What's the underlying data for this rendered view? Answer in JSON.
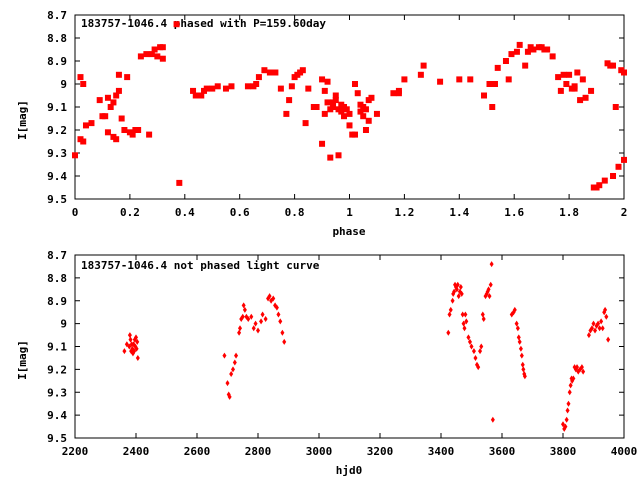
{
  "chart_data": [
    {
      "type": "scatter",
      "title": "183757-1046.4 phased with P=159.60day",
      "xlabel": "phase",
      "ylabel": "I[mag]",
      "xlim": [
        0,
        2
      ],
      "ylim": [
        8.7,
        9.5
      ],
      "y_inverted": true,
      "xticks": [
        "0",
        "0.2",
        "0.4",
        "0.6",
        "0.8",
        "1",
        "1.2",
        "1.4",
        "1.6",
        "1.8",
        "2"
      ],
      "yticks": [
        "8.7",
        "8.8",
        "8.9",
        "9",
        "9.1",
        "9.2",
        "9.3",
        "9.4",
        "9.5"
      ],
      "marker": "filled-square",
      "color": "#ff0000",
      "grid": false,
      "legend": "none",
      "points": [
        [
          0.0,
          9.31
        ],
        [
          0.02,
          9.24
        ],
        [
          0.03,
          9.25
        ],
        [
          0.02,
          8.97
        ],
        [
          0.03,
          9.0
        ],
        [
          0.04,
          9.18
        ],
        [
          0.06,
          9.17
        ],
        [
          0.09,
          9.07
        ],
        [
          0.1,
          9.14
        ],
        [
          0.11,
          9.14
        ],
        [
          0.12,
          9.21
        ],
        [
          0.12,
          9.06
        ],
        [
          0.13,
          9.1
        ],
        [
          0.14,
          9.08
        ],
        [
          0.14,
          9.23
        ],
        [
          0.15,
          9.24
        ],
        [
          0.15,
          9.05
        ],
        [
          0.16,
          9.03
        ],
        [
          0.16,
          8.96
        ],
        [
          0.17,
          9.15
        ],
        [
          0.18,
          9.2
        ],
        [
          0.19,
          8.97
        ],
        [
          0.2,
          9.21
        ],
        [
          0.21,
          9.22
        ],
        [
          0.22,
          9.2
        ],
        [
          0.23,
          9.2
        ],
        [
          0.24,
          8.88
        ],
        [
          0.26,
          8.87
        ],
        [
          0.27,
          9.22
        ],
        [
          0.28,
          8.87
        ],
        [
          0.29,
          8.85
        ],
        [
          0.3,
          8.88
        ],
        [
          0.31,
          8.84
        ],
        [
          0.32,
          8.89
        ],
        [
          0.32,
          8.84
        ],
        [
          0.37,
          8.74
        ],
        [
          0.38,
          9.43
        ],
        [
          0.43,
          9.03
        ],
        [
          0.44,
          9.05
        ],
        [
          0.45,
          9.05
        ],
        [
          0.46,
          9.05
        ],
        [
          0.47,
          9.03
        ],
        [
          0.48,
          9.02
        ],
        [
          0.5,
          9.02
        ],
        [
          0.52,
          9.01
        ],
        [
          0.55,
          9.02
        ],
        [
          0.57,
          9.01
        ],
        [
          0.63,
          9.01
        ],
        [
          0.65,
          9.01
        ],
        [
          0.66,
          9.0
        ],
        [
          0.67,
          8.97
        ],
        [
          0.69,
          8.94
        ],
        [
          0.71,
          8.95
        ],
        [
          0.73,
          8.95
        ],
        [
          0.75,
          9.02
        ],
        [
          0.77,
          9.13
        ],
        [
          0.78,
          9.07
        ],
        [
          0.79,
          9.01
        ],
        [
          0.8,
          8.97
        ],
        [
          0.81,
          8.96
        ],
        [
          0.82,
          8.95
        ],
        [
          0.83,
          8.94
        ],
        [
          0.84,
          9.17
        ],
        [
          0.85,
          9.02
        ],
        [
          0.87,
          9.1
        ],
        [
          0.88,
          9.1
        ],
        [
          0.9,
          9.26
        ],
        [
          0.9,
          8.98
        ],
        [
          0.91,
          9.03
        ],
        [
          0.91,
          9.13
        ],
        [
          0.92,
          8.99
        ],
        [
          0.92,
          9.08
        ],
        [
          0.93,
          9.11
        ],
        [
          0.93,
          9.32
        ],
        [
          0.94,
          9.08
        ],
        [
          0.94,
          9.1
        ],
        [
          0.95,
          9.05
        ],
        [
          0.95,
          9.07
        ],
        [
          0.96,
          9.11
        ],
        [
          0.96,
          9.31
        ],
        [
          0.97,
          9.09
        ],
        [
          0.97,
          9.12
        ],
        [
          0.98,
          9.1
        ],
        [
          0.98,
          9.14
        ],
        [
          0.99,
          9.11
        ],
        [
          1.0,
          9.13
        ],
        [
          1.0,
          9.18
        ],
        [
          1.01,
          9.22
        ],
        [
          1.02,
          9.0
        ],
        [
          1.02,
          9.22
        ],
        [
          1.03,
          9.04
        ],
        [
          1.04,
          9.09
        ],
        [
          1.04,
          9.12
        ],
        [
          1.05,
          9.1
        ],
        [
          1.05,
          9.14
        ],
        [
          1.06,
          9.11
        ],
        [
          1.06,
          9.2
        ],
        [
          1.07,
          9.16
        ],
        [
          1.07,
          9.07
        ],
        [
          1.08,
          9.06
        ],
        [
          1.1,
          9.13
        ],
        [
          1.16,
          9.04
        ],
        [
          1.18,
          9.03
        ],
        [
          1.18,
          9.04
        ],
        [
          1.2,
          8.98
        ],
        [
          1.26,
          8.96
        ],
        [
          1.27,
          8.92
        ],
        [
          1.33,
          8.99
        ],
        [
          1.4,
          8.98
        ],
        [
          1.44,
          8.98
        ],
        [
          1.49,
          9.05
        ],
        [
          1.51,
          9.0
        ],
        [
          1.52,
          9.1
        ],
        [
          1.53,
          9.0
        ],
        [
          1.54,
          8.93
        ],
        [
          1.57,
          8.9
        ],
        [
          1.58,
          8.98
        ],
        [
          1.59,
          8.87
        ],
        [
          1.61,
          8.86
        ],
        [
          1.62,
          8.83
        ],
        [
          1.64,
          8.92
        ],
        [
          1.65,
          8.86
        ],
        [
          1.66,
          8.84
        ],
        [
          1.67,
          8.85
        ],
        [
          1.69,
          8.84
        ],
        [
          1.7,
          8.84
        ],
        [
          1.71,
          8.85
        ],
        [
          1.72,
          8.85
        ],
        [
          1.74,
          8.88
        ],
        [
          1.76,
          8.97
        ],
        [
          1.77,
          9.03
        ],
        [
          1.78,
          8.96
        ],
        [
          1.79,
          9.0
        ],
        [
          1.8,
          8.96
        ],
        [
          1.81,
          9.02
        ],
        [
          1.82,
          9.02
        ],
        [
          1.82,
          9.01
        ],
        [
          1.83,
          8.95
        ],
        [
          1.84,
          9.07
        ],
        [
          1.85,
          8.98
        ],
        [
          1.86,
          9.06
        ],
        [
          1.88,
          9.03
        ],
        [
          1.89,
          9.45
        ],
        [
          1.9,
          9.45
        ],
        [
          1.91,
          9.44
        ],
        [
          1.93,
          9.42
        ],
        [
          1.94,
          8.91
        ],
        [
          1.95,
          8.92
        ],
        [
          1.96,
          9.4
        ],
        [
          1.96,
          8.92
        ],
        [
          1.97,
          9.1
        ],
        [
          1.98,
          9.36
        ],
        [
          1.99,
          8.94
        ],
        [
          2.0,
          9.33
        ],
        [
          2.0,
          8.95
        ]
      ]
    },
    {
      "type": "scatter",
      "title": "183757-1046.4 not phased light curve",
      "xlabel": "hjd0",
      "ylabel": "I[mag]",
      "xlim": [
        2200,
        4000
      ],
      "ylim": [
        8.7,
        9.5
      ],
      "y_inverted": true,
      "xticks": [
        "2200",
        "2400",
        "2600",
        "2800",
        "3000",
        "3200",
        "3400",
        "3600",
        "3800",
        "4000"
      ],
      "yticks": [
        "8.7",
        "8.8",
        "8.9",
        "9",
        "9.1",
        "9.2",
        "9.3",
        "9.4",
        "9.5"
      ],
      "marker": "small-diamond",
      "color": "#ff0000",
      "grid": false,
      "legend": "none",
      "points": [
        [
          2362,
          9.12
        ],
        [
          2370,
          9.09
        ],
        [
          2378,
          9.1
        ],
        [
          2380,
          9.05
        ],
        [
          2382,
          9.07
        ],
        [
          2384,
          9.12
        ],
        [
          2386,
          9.09
        ],
        [
          2388,
          9.11
        ],
        [
          2390,
          9.13
        ],
        [
          2392,
          9.09
        ],
        [
          2394,
          9.12
        ],
        [
          2396,
          9.07
        ],
        [
          2398,
          9.1
        ],
        [
          2400,
          9.06
        ],
        [
          2402,
          9.11
        ],
        [
          2404,
          9.08
        ],
        [
          2406,
          9.15
        ],
        [
          2690,
          9.14
        ],
        [
          2700,
          9.26
        ],
        [
          2704,
          9.31
        ],
        [
          2707,
          9.32
        ],
        [
          2712,
          9.22
        ],
        [
          2718,
          9.2
        ],
        [
          2724,
          9.17
        ],
        [
          2728,
          9.14
        ],
        [
          2738,
          9.04
        ],
        [
          2741,
          9.02
        ],
        [
          2745,
          8.98
        ],
        [
          2750,
          8.97
        ],
        [
          2753,
          8.92
        ],
        [
          2757,
          8.94
        ],
        [
          2762,
          8.97
        ],
        [
          2768,
          8.98
        ],
        [
          2778,
          8.97
        ],
        [
          2786,
          9.02
        ],
        [
          2792,
          9.0
        ],
        [
          2800,
          9.03
        ],
        [
          2810,
          8.99
        ],
        [
          2815,
          8.96
        ],
        [
          2825,
          8.98
        ],
        [
          2833,
          8.89
        ],
        [
          2838,
          8.88
        ],
        [
          2843,
          8.9
        ],
        [
          2850,
          8.89
        ],
        [
          2856,
          8.92
        ],
        [
          2862,
          8.93
        ],
        [
          2867,
          8.96
        ],
        [
          2873,
          8.99
        ],
        [
          2880,
          9.04
        ],
        [
          2886,
          9.08
        ],
        [
          3424,
          9.04
        ],
        [
          3428,
          8.96
        ],
        [
          3432,
          8.94
        ],
        [
          3438,
          8.9
        ],
        [
          3440,
          8.87
        ],
        [
          3443,
          8.86
        ],
        [
          3446,
          8.83
        ],
        [
          3449,
          8.84
        ],
        [
          3452,
          8.85
        ],
        [
          3455,
          8.83
        ],
        [
          3458,
          8.88
        ],
        [
          3462,
          8.86
        ],
        [
          3465,
          8.84
        ],
        [
          3468,
          8.87
        ],
        [
          3471,
          8.96
        ],
        [
          3474,
          9.0
        ],
        [
          3477,
          9.02
        ],
        [
          3480,
          8.96
        ],
        [
          3483,
          8.99
        ],
        [
          3490,
          9.06
        ],
        [
          3495,
          9.08
        ],
        [
          3500,
          9.1
        ],
        [
          3508,
          9.12
        ],
        [
          3513,
          9.15
        ],
        [
          3518,
          9.18
        ],
        [
          3522,
          9.19
        ],
        [
          3528,
          9.12
        ],
        [
          3532,
          9.1
        ],
        [
          3537,
          8.96
        ],
        [
          3540,
          8.98
        ],
        [
          3546,
          8.88
        ],
        [
          3550,
          8.87
        ],
        [
          3553,
          8.86
        ],
        [
          3556,
          8.85
        ],
        [
          3559,
          8.88
        ],
        [
          3563,
          8.83
        ],
        [
          3566,
          8.74
        ],
        [
          3570,
          9.42
        ],
        [
          3632,
          8.96
        ],
        [
          3638,
          8.95
        ],
        [
          3642,
          8.94
        ],
        [
          3648,
          9.0
        ],
        [
          3652,
          9.02
        ],
        [
          3655,
          9.06
        ],
        [
          3658,
          9.08
        ],
        [
          3662,
          9.11
        ],
        [
          3665,
          9.14
        ],
        [
          3668,
          9.18
        ],
        [
          3670,
          9.2
        ],
        [
          3673,
          9.22
        ],
        [
          3675,
          9.23
        ],
        [
          3800,
          9.44
        ],
        [
          3804,
          9.46
        ],
        [
          3808,
          9.45
        ],
        [
          3812,
          9.42
        ],
        [
          3815,
          9.38
        ],
        [
          3818,
          9.35
        ],
        [
          3822,
          9.3
        ],
        [
          3825,
          9.27
        ],
        [
          3828,
          9.24
        ],
        [
          3830,
          9.25
        ],
        [
          3834,
          9.24
        ],
        [
          3838,
          9.19
        ],
        [
          3842,
          9.2
        ],
        [
          3846,
          9.19
        ],
        [
          3850,
          9.21
        ],
        [
          3856,
          9.2
        ],
        [
          3862,
          9.19
        ],
        [
          3866,
          9.21
        ],
        [
          3885,
          9.05
        ],
        [
          3890,
          9.03
        ],
        [
          3895,
          9.02
        ],
        [
          3900,
          9.0
        ],
        [
          3905,
          9.03
        ],
        [
          3910,
          9.01
        ],
        [
          3915,
          9.0
        ],
        [
          3920,
          9.02
        ],
        [
          3925,
          8.99
        ],
        [
          3930,
          9.02
        ],
        [
          3935,
          8.95
        ],
        [
          3938,
          8.94
        ],
        [
          3942,
          8.97
        ],
        [
          3948,
          9.07
        ]
      ]
    }
  ]
}
